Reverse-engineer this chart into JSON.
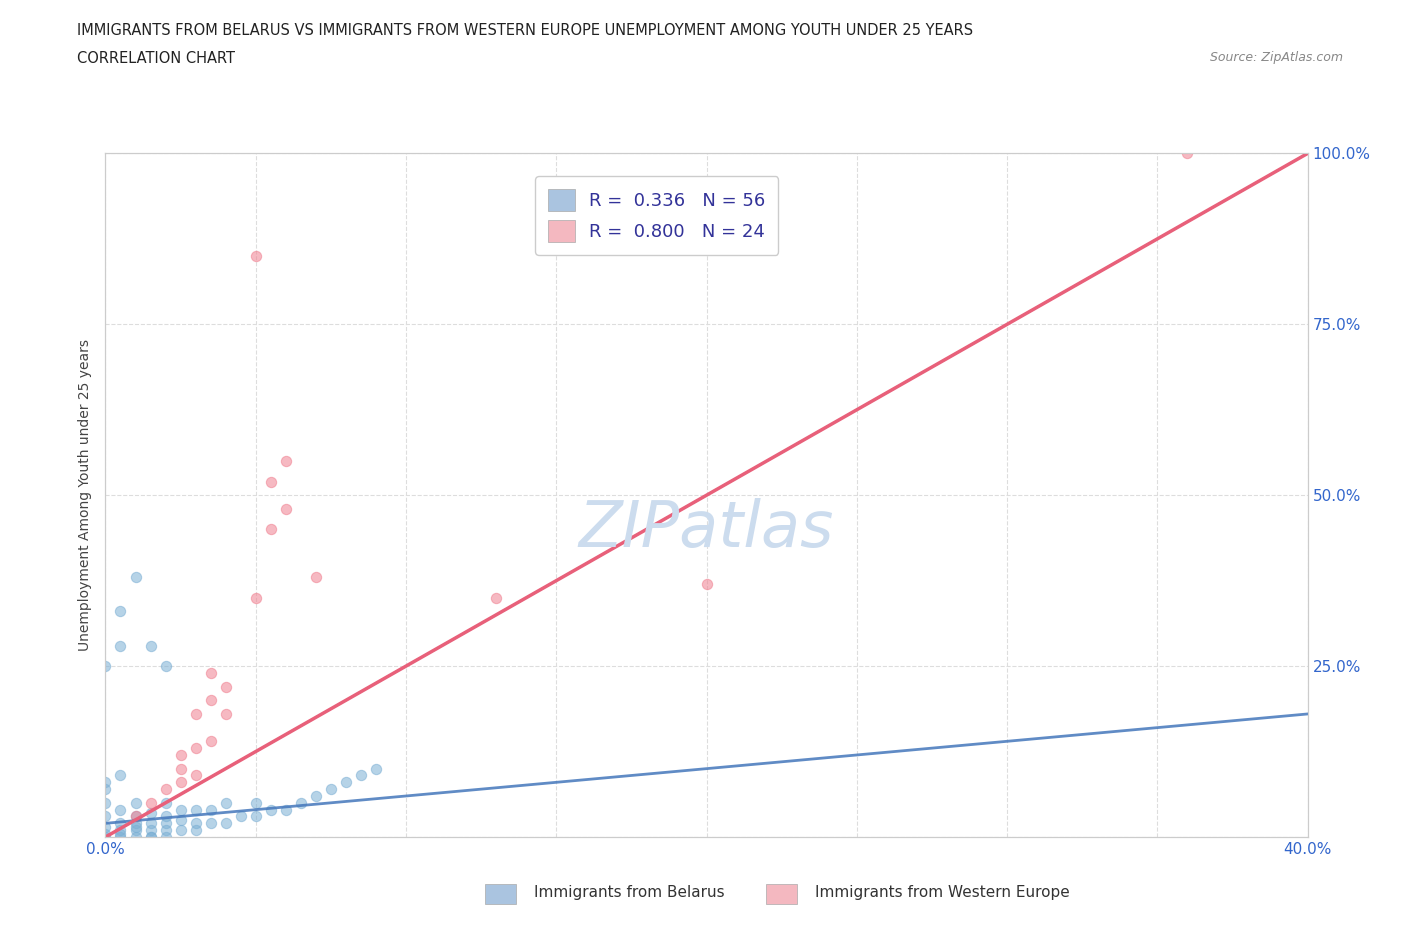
{
  "title_line1": "IMMIGRANTS FROM BELARUS VS IMMIGRANTS FROM WESTERN EUROPE UNEMPLOYMENT AMONG YOUTH UNDER 25 YEARS",
  "title_line2": "CORRELATION CHART",
  "source_text": "Source: ZipAtlas.com",
  "ylabel": "Unemployment Among Youth under 25 years",
  "xlim": [
    0.0,
    40.0
  ],
  "ylim": [
    0.0,
    100.0
  ],
  "xticks": [
    0.0,
    5.0,
    10.0,
    15.0,
    20.0,
    25.0,
    30.0,
    35.0,
    40.0
  ],
  "xticklabels": [
    "0.0%",
    "",
    "",
    "",
    "",
    "",
    "",
    "",
    "40.0%"
  ],
  "yticks": [
    0.0,
    25.0,
    50.0,
    75.0,
    100.0
  ],
  "yticklabels": [
    "",
    "25.0%",
    "50.0%",
    "75.0%",
    "100.0%"
  ],
  "legend_r_n": [
    {
      "R": "0.336",
      "N": "56",
      "color": "#aac4e0"
    },
    {
      "R": "0.800",
      "N": "24",
      "color": "#f4b8c0"
    }
  ],
  "belarus_color": "#7bafd4",
  "western_europe_color": "#f08090",
  "diagonal_color": "#aaaaaa",
  "trend_belarus_color": "#4477bb",
  "trend_western_europe_color": "#e8607a",
  "watermark_color": "#ccdcee",
  "belarus_scatter": [
    [
      0.0,
      0.0
    ],
    [
      0.0,
      1.5
    ],
    [
      0.0,
      3.0
    ],
    [
      0.0,
      5.0
    ],
    [
      0.0,
      7.0
    ],
    [
      0.5,
      0.0
    ],
    [
      0.5,
      1.0
    ],
    [
      0.5,
      2.0
    ],
    [
      0.5,
      4.0
    ],
    [
      1.0,
      0.0
    ],
    [
      1.0,
      1.0
    ],
    [
      1.0,
      2.0
    ],
    [
      1.0,
      3.0
    ],
    [
      1.0,
      5.0
    ],
    [
      1.5,
      0.0
    ],
    [
      1.5,
      1.0
    ],
    [
      1.5,
      2.0
    ],
    [
      1.5,
      3.5
    ],
    [
      2.0,
      0.0
    ],
    [
      2.0,
      1.0
    ],
    [
      2.0,
      2.0
    ],
    [
      2.0,
      3.0
    ],
    [
      2.0,
      5.0
    ],
    [
      2.5,
      1.0
    ],
    [
      2.5,
      2.5
    ],
    [
      2.5,
      4.0
    ],
    [
      3.0,
      1.0
    ],
    [
      3.0,
      2.0
    ],
    [
      3.0,
      4.0
    ],
    [
      3.5,
      2.0
    ],
    [
      3.5,
      4.0
    ],
    [
      4.0,
      2.0
    ],
    [
      4.0,
      5.0
    ],
    [
      4.5,
      3.0
    ],
    [
      5.0,
      3.0
    ],
    [
      5.0,
      5.0
    ],
    [
      5.5,
      4.0
    ],
    [
      6.0,
      4.0
    ],
    [
      6.5,
      5.0
    ],
    [
      7.0,
      6.0
    ],
    [
      7.5,
      7.0
    ],
    [
      8.0,
      8.0
    ],
    [
      8.5,
      9.0
    ],
    [
      9.0,
      10.0
    ],
    [
      0.5,
      33.0
    ],
    [
      1.0,
      38.0
    ],
    [
      1.5,
      28.0
    ],
    [
      2.0,
      25.0
    ],
    [
      0.0,
      25.0
    ],
    [
      0.5,
      28.0
    ],
    [
      1.5,
      0.0
    ],
    [
      0.0,
      0.5
    ],
    [
      0.5,
      0.5
    ],
    [
      1.0,
      1.5
    ],
    [
      0.0,
      8.0
    ],
    [
      0.5,
      9.0
    ]
  ],
  "western_europe_scatter": [
    [
      1.0,
      3.0
    ],
    [
      1.5,
      5.0
    ],
    [
      2.0,
      7.0
    ],
    [
      2.5,
      8.0
    ],
    [
      2.5,
      10.0
    ],
    [
      2.5,
      12.0
    ],
    [
      3.0,
      9.0
    ],
    [
      3.0,
      13.0
    ],
    [
      3.0,
      18.0
    ],
    [
      3.5,
      14.0
    ],
    [
      3.5,
      20.0
    ],
    [
      3.5,
      24.0
    ],
    [
      4.0,
      18.0
    ],
    [
      4.0,
      22.0
    ],
    [
      5.0,
      35.0
    ],
    [
      5.5,
      45.0
    ],
    [
      5.5,
      52.0
    ],
    [
      6.0,
      48.0
    ],
    [
      6.0,
      55.0
    ],
    [
      7.0,
      38.0
    ],
    [
      13.0,
      35.0
    ],
    [
      20.0,
      37.0
    ],
    [
      36.0,
      100.0
    ],
    [
      5.0,
      85.0
    ]
  ],
  "trend_belarus_x0": 0.0,
  "trend_belarus_x1": 40.0,
  "trend_belarus_y0": 2.0,
  "trend_belarus_y1": 18.0,
  "trend_we_x0": 0.0,
  "trend_we_x1": 40.0,
  "trend_we_y0": 0.0,
  "trend_we_y1": 100.0,
  "diag_x0": 0.0,
  "diag_x1": 40.0,
  "diag_y0": 0.0,
  "diag_y1": 100.0
}
